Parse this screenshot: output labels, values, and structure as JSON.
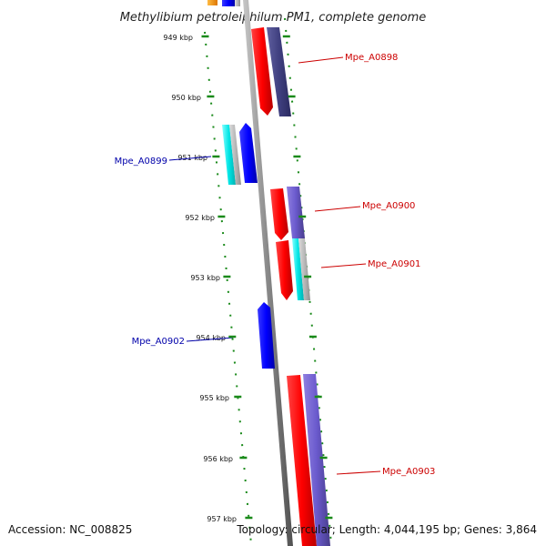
{
  "title": "Methylibium petroleiphilum PM1, complete genome",
  "footer": {
    "accession": "Accession: NC_008825",
    "summary": "Topology: circular; Length: 4,044,195 bp; Genes: 3,864"
  },
  "ruler_labels": [
    "949 kbp",
    "950 kbp",
    "951 kbp",
    "952 kbp",
    "953 kbp",
    "954 kbp",
    "955 kbp",
    "956 kbp",
    "957 kbp"
  ],
  "gene_labels": [
    {
      "name": "Mpe_A0898",
      "color": "#cc0000"
    },
    {
      "name": "Mpe_A0899",
      "color": "#0000aa"
    },
    {
      "name": "Mpe_A0900",
      "color": "#cc0000"
    },
    {
      "name": "Mpe_A0901",
      "color": "#cc0000"
    },
    {
      "name": "Mpe_A0902",
      "color": "#0000aa"
    },
    {
      "name": "Mpe_A0903",
      "color": "#cc0000"
    }
  ],
  "colors": {
    "forward_cds": "#ff0000",
    "reverse_cds": "#0000ff",
    "cog_purple": "#6a5acd",
    "cog_cyan": "#00e5e5",
    "cog_grey": "#b0b0b0",
    "cog_orange": "#ff9900",
    "backbone": "#808080",
    "ticks": "#1a8a1a"
  }
}
